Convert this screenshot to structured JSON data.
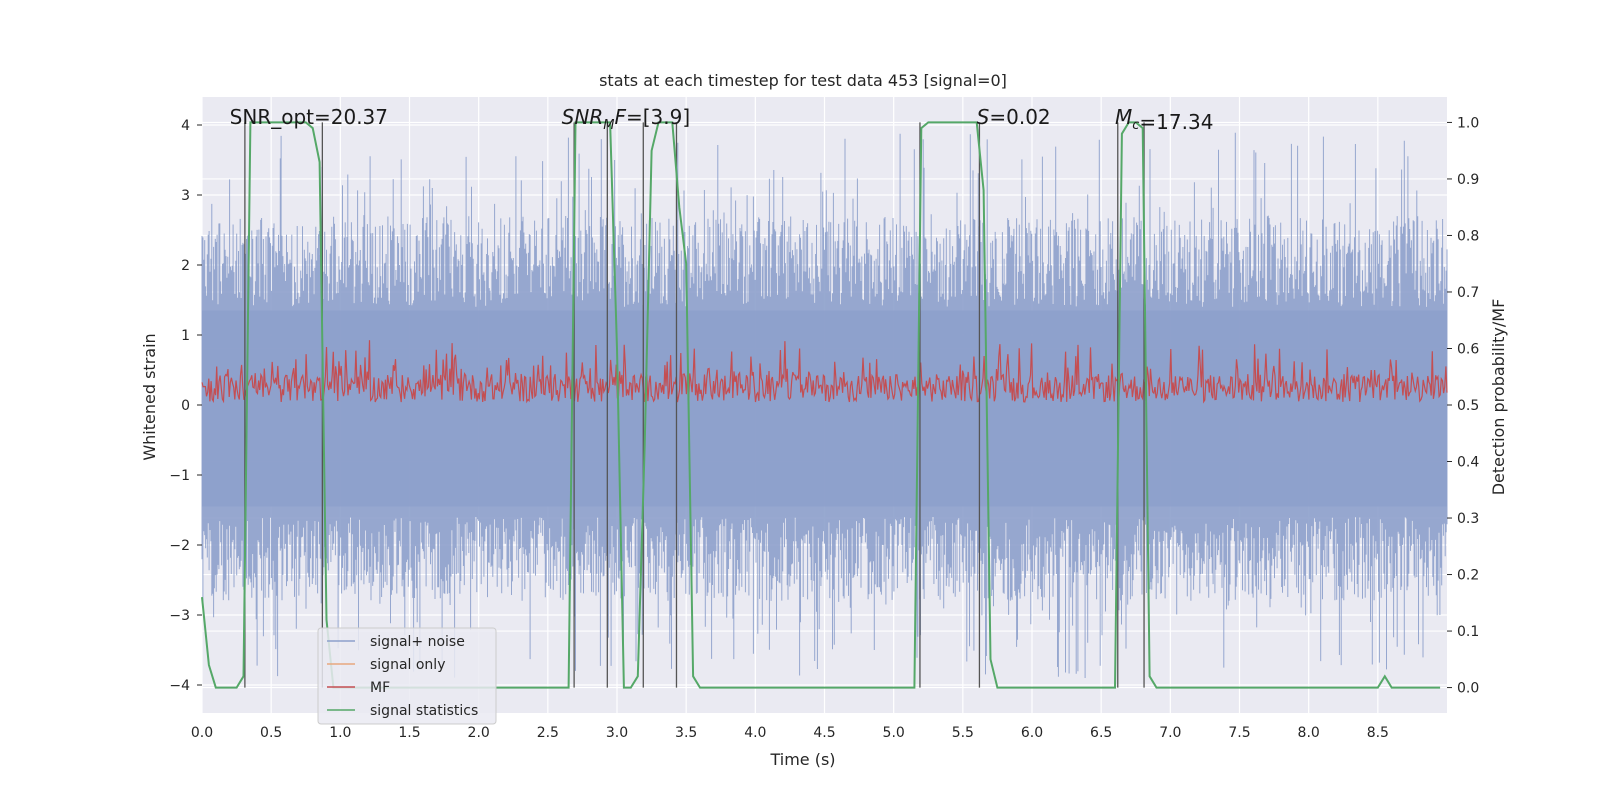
{
  "chart_data": {
    "type": "line",
    "title": "stats at each timestep for test data 453 [signal=0]",
    "xlabel": "Time (s)",
    "ylabel": "Whitened strain",
    "ylabel_right": "Detection probability/MF",
    "xlim": [
      0.0,
      9.0
    ],
    "ylim": [
      -4.4,
      4.4
    ],
    "ylim_right": [
      -0.045,
      1.045
    ],
    "x_ticks": [
      "0.0",
      "0.5",
      "1.0",
      "1.5",
      "2.0",
      "2.5",
      "3.0",
      "3.5",
      "4.0",
      "4.5",
      "5.0",
      "5.5",
      "6.0",
      "6.5",
      "7.0",
      "7.5",
      "8.0",
      "8.5"
    ],
    "x_tick_values": [
      0.0,
      0.5,
      1.0,
      1.5,
      2.0,
      2.5,
      3.0,
      3.5,
      4.0,
      4.5,
      5.0,
      5.5,
      6.0,
      6.5,
      7.0,
      7.5,
      8.0,
      8.5
    ],
    "y_ticks": [
      "4",
      "3",
      "2",
      "1",
      "0",
      "−1",
      "−2",
      "−3",
      "−4"
    ],
    "y_tick_values": [
      4,
      3,
      2,
      1,
      0,
      -1,
      -2,
      -3,
      -4
    ],
    "y_ticks_right": [
      "1.0",
      "0.9",
      "0.8",
      "0.7",
      "0.6",
      "0.5",
      "0.4",
      "0.3",
      "0.2",
      "0.1",
      "0.0"
    ],
    "y_tick_values_right": [
      1.0,
      0.9,
      0.8,
      0.7,
      0.6,
      0.5,
      0.4,
      0.3,
      0.2,
      0.1,
      0.0
    ],
    "grid": true,
    "legend_position": "lower-left",
    "series": [
      {
        "name": "signal+ noise",
        "color": "#8da0cb",
        "axis": "left",
        "amplitude_range": [
          -3.9,
          3.9
        ]
      },
      {
        "name": "signal only",
        "color": "#e8a77e",
        "axis": "left",
        "values": []
      },
      {
        "name": "MF",
        "color": "#c44e52",
        "axis": "right",
        "value_range": [
          0.5,
          0.62
        ]
      },
      {
        "name": "signal statistics",
        "color": "#55a868",
        "axis": "right",
        "x": [
          0.0,
          0.05,
          0.1,
          0.15,
          0.2,
          0.25,
          0.3,
          0.35,
          0.4,
          0.45,
          0.5,
          0.55,
          0.6,
          0.65,
          0.7,
          0.75,
          0.8,
          0.85,
          0.9,
          0.95,
          2.6,
          2.65,
          2.7,
          2.75,
          2.8,
          2.85,
          2.9,
          2.95,
          3.0,
          3.05,
          3.1,
          3.15,
          3.2,
          3.25,
          3.3,
          3.35,
          3.4,
          3.45,
          3.5,
          3.55,
          3.6,
          5.15,
          5.2,
          5.25,
          5.3,
          5.6,
          5.65,
          5.7,
          5.75,
          5.8,
          6.6,
          6.65,
          6.7,
          6.75,
          6.8,
          6.85,
          6.9,
          6.95,
          8.45,
          8.5,
          8.55,
          8.6,
          8.65,
          8.95
        ],
        "values": [
          0.16,
          0.04,
          0.0,
          0.0,
          0.0,
          0.0,
          0.02,
          1.0,
          1.0,
          1.0,
          1.0,
          1.0,
          1.0,
          1.0,
          1.0,
          1.0,
          0.99,
          0.93,
          0.12,
          0.0,
          0.0,
          0.0,
          1.0,
          1.0,
          1.0,
          1.0,
          1.0,
          1.0,
          0.6,
          0.0,
          0.0,
          0.02,
          0.43,
          0.95,
          1.0,
          1.0,
          1.0,
          0.85,
          0.75,
          0.02,
          0.0,
          0.0,
          0.99,
          1.0,
          1.0,
          1.0,
          0.88,
          0.05,
          0.0,
          0.0,
          0.0,
          0.98,
          1.0,
          1.0,
          0.99,
          0.02,
          0.0,
          0.0,
          0.0,
          0.0,
          0.02,
          0.0,
          0.0,
          0.0
        ]
      }
    ],
    "vertical_markers": [
      0.31,
      0.87,
      2.69,
      2.93,
      3.19,
      3.43,
      5.19,
      5.62,
      6.62,
      6.81
    ],
    "annotations": [
      {
        "text": "SNR_opt=20.37",
        "x": 0.2
      },
      {
        "text": "=[3.9]",
        "prefix_main": "SNR",
        "prefix_sub": "M",
        "prefix_after": "F",
        "x": 2.6
      },
      {
        "text": "=0.02",
        "prefix_main": "S",
        "x": 5.6
      },
      {
        "text": "=17.34",
        "prefix_main": "M",
        "prefix_sub": "c",
        "x": 6.6
      }
    ]
  }
}
